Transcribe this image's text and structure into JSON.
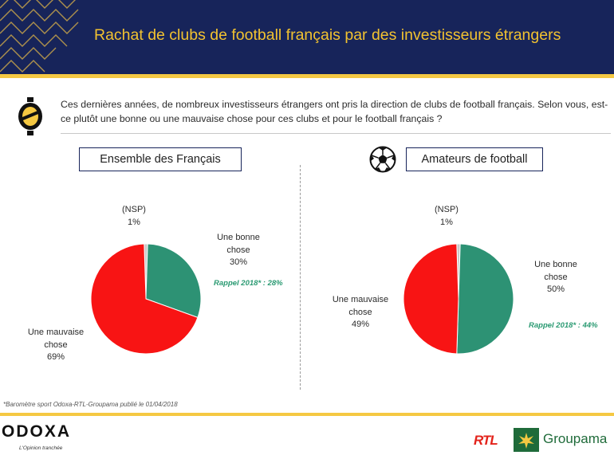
{
  "header": {
    "title": "Rachat de clubs de football français par des investisseurs étrangers"
  },
  "question": "Ces dernières années, de nombreux investisseurs étrangers ont pris la direction de clubs de football français. Selon vous, est-ce plutôt une bonne ou une mauvaise chose pour ces clubs et pour le football français ?",
  "colors": {
    "bonne": "#2d9274",
    "mauvaise": "#f81414",
    "nsp": "#c9c9c9",
    "header": "#17245a",
    "accent": "#f5c842"
  },
  "panels": [
    {
      "title": "Ensemble des Français",
      "nsp": {
        "label": "(NSP)",
        "value": "1%"
      },
      "bonne": {
        "label_1": "Une bonne",
        "label_2": "chose",
        "value": "30%"
      },
      "mauvaise": {
        "label_1": "Une mauvaise",
        "label_2": "chose",
        "value": "69%"
      },
      "rappel": "Rappel 2018* : 28%"
    },
    {
      "title": "Amateurs de football",
      "icon": "football-icon",
      "nsp": {
        "label": "(NSP)",
        "value": "1%"
      },
      "bonne": {
        "label_1": "Une bonne",
        "label_2": "chose",
        "value": "50%"
      },
      "mauvaise": {
        "label_1": "Une mauvaise",
        "label_2": "chose",
        "value": "49%"
      },
      "rappel": "Rappel 2018* : 44%"
    }
  ],
  "chart_data": [
    {
      "type": "pie",
      "title": "Ensemble des Français",
      "categories": [
        "(NSP)",
        "Une bonne chose",
        "Une mauvaise chose"
      ],
      "values": [
        1,
        30,
        69
      ],
      "colors": [
        "#c9c9c9",
        "#2d9274",
        "#f81414"
      ],
      "annotations": [
        "Rappel 2018* : 28%"
      ]
    },
    {
      "type": "pie",
      "title": "Amateurs de football",
      "categories": [
        "(NSP)",
        "Une bonne chose",
        "Une mauvaise chose"
      ],
      "values": [
        1,
        50,
        49
      ],
      "colors": [
        "#c9c9c9",
        "#2d9274",
        "#f81414"
      ],
      "annotations": [
        "Rappel 2018* : 44%"
      ]
    }
  ],
  "footnote": "*Baromètre sport Odoxa-RTL-Groupama publié le 01/04/2018",
  "footer": {
    "odoxa": "ODOXA",
    "odoxa_tagline": "L'Opinion tranchée",
    "rtl": "RTL",
    "groupama": "Groupama"
  }
}
